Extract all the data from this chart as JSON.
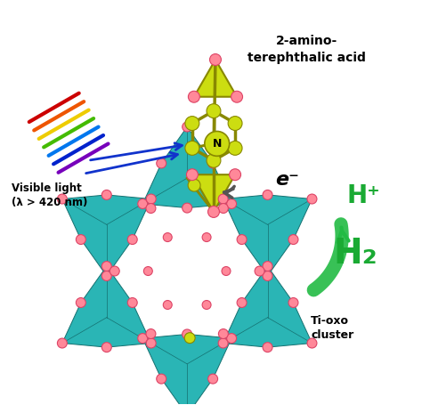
{
  "bg_color": "#ffffff",
  "teal_color": "#2ab5b5",
  "teal_edge": "#157070",
  "teal_face_light": "#35c8c8",
  "teal_face_dark": "#188888",
  "pink_color": "#ff8899",
  "pink_edge": "#dd4466",
  "yellow_color": "#ccdd11",
  "yellow_edge": "#888800",
  "green_color": "#22bb44",
  "green_text": "#1aaa33",
  "gray_color": "#555555",
  "label_2amino": "2-amino-\nterephthalic acid",
  "label_visible": "Visible light\n(λ > 420 nm)",
  "label_ti_oxo": "Ti-oxo\ncluster",
  "label_eminus": "e⁻",
  "label_hplus": "H⁺",
  "label_h2": "H₂",
  "label_N": "N",
  "ray_colors": [
    "#cc0000",
    "#ee5500",
    "#eecc00",
    "#44bb00",
    "#0077ee",
    "#0022cc",
    "#7700bb"
  ]
}
